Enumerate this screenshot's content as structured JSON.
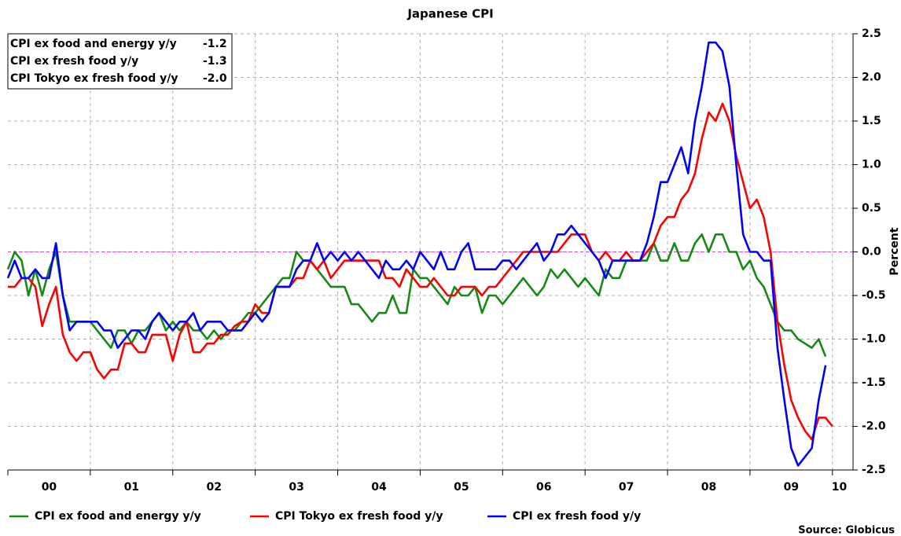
{
  "chart_data": {
    "type": "line",
    "title": "Japanese CPI",
    "y_label": "Percent",
    "source": "Source: Globicus",
    "ylim": [
      -2.5,
      2.5
    ],
    "yticks": [
      -2.5,
      {
        "value": -2,
        "label": "-2.0"
      },
      -1.5,
      {
        "value": -1,
        "label": "-1.0"
      },
      -0.5,
      {
        "value": 0,
        "label": "0.0"
      },
      0.5,
      {
        "value": 1,
        "label": "1.0"
      },
      1.5,
      {
        "value": 2,
        "label": "2.0"
      },
      2.5
    ],
    "grid": true,
    "zero_line_color": "#e040e0",
    "annotations": [
      {
        "text": "CPI ex food and energy y/y",
        "latest": "-1.2"
      },
      {
        "text": "CPI ex fresh food y/y",
        "latest": "-1.3"
      },
      {
        "text": "CPI Tokyo ex fresh food y/y",
        "latest": "-2.0"
      }
    ],
    "categories": [
      null,
      null,
      null,
      null,
      null,
      null,
      "00",
      null,
      null,
      null,
      null,
      null,
      null,
      null,
      null,
      null,
      null,
      null,
      "01",
      null,
      null,
      null,
      null,
      null,
      null,
      null,
      null,
      null,
      null,
      null,
      "02",
      null,
      null,
      null,
      null,
      null,
      null,
      null,
      null,
      null,
      null,
      null,
      "03",
      null,
      null,
      null,
      null,
      null,
      null,
      null,
      null,
      null,
      null,
      null,
      "04",
      null,
      null,
      null,
      null,
      null,
      null,
      null,
      null,
      null,
      null,
      null,
      "05",
      null,
      null,
      null,
      null,
      null,
      null,
      null,
      null,
      null,
      null,
      null,
      "06",
      null,
      null,
      null,
      null,
      null,
      null,
      null,
      null,
      null,
      null,
      null,
      "07",
      null,
      null,
      null,
      null,
      null,
      null,
      null,
      null,
      null,
      null,
      null,
      "08",
      null,
      null,
      null,
      null,
      null,
      null,
      null,
      null,
      null,
      null,
      null,
      "09",
      null,
      null,
      null,
      null,
      null,
      null,
      "10"
    ],
    "series": [
      {
        "name": "CPI ex food and energy y/y",
        "color": "#168a16",
        "values": [
          -0.2,
          0.0,
          -0.1,
          -0.5,
          -0.2,
          -0.5,
          -0.2,
          0.0,
          -0.5,
          -0.8,
          -0.8,
          -0.8,
          -0.8,
          -0.9,
          -1.0,
          -1.1,
          -0.9,
          -0.9,
          -1.05,
          -0.9,
          -0.9,
          -0.8,
          -0.7,
          -0.9,
          -0.8,
          -0.9,
          -0.8,
          -0.9,
          -0.9,
          -1.0,
          -0.9,
          -1.0,
          -0.9,
          -0.9,
          -0.8,
          -0.7,
          -0.7,
          -0.6,
          -0.5,
          -0.4,
          -0.3,
          -0.3,
          0.0,
          -0.1,
          -0.1,
          -0.2,
          -0.3,
          -0.4,
          -0.4,
          -0.4,
          -0.6,
          -0.6,
          -0.7,
          -0.8,
          -0.7,
          -0.7,
          -0.5,
          -0.7,
          -0.7,
          -0.2,
          -0.3,
          -0.3,
          -0.4,
          -0.5,
          -0.6,
          -0.4,
          -0.5,
          -0.5,
          -0.4,
          -0.7,
          -0.5,
          -0.5,
          -0.6,
          -0.5,
          -0.4,
          -0.3,
          -0.4,
          -0.5,
          -0.4,
          -0.2,
          -0.3,
          -0.2,
          -0.3,
          -0.4,
          -0.3,
          -0.4,
          -0.5,
          -0.2,
          -0.3,
          -0.3,
          -0.1,
          -0.1,
          -0.1,
          -0.1,
          0.1,
          -0.1,
          -0.1,
          0.1,
          -0.1,
          -0.1,
          0.1,
          0.2,
          0.0,
          0.2,
          0.2,
          0.0,
          0.0,
          -0.2,
          -0.1,
          -0.3,
          -0.4,
          -0.6,
          -0.8,
          -0.9,
          -0.9,
          -1.0,
          -1.05,
          -1.1,
          -1.0,
          -1.2,
          null,
          null
        ]
      },
      {
        "name": "CPI Tokyo ex fresh food y/y",
        "color": "#ff0000",
        "values": [
          -0.4,
          -0.4,
          -0.3,
          -0.3,
          -0.4,
          -0.85,
          -0.6,
          -0.4,
          -0.95,
          -1.15,
          -1.25,
          -1.15,
          -1.15,
          -1.35,
          -1.45,
          -1.35,
          -1.35,
          -1.05,
          -1.05,
          -1.15,
          -1.15,
          -0.95,
          -0.95,
          -0.95,
          -1.25,
          -0.95,
          -0.8,
          -1.15,
          -1.15,
          -1.05,
          -1.05,
          -0.95,
          -0.95,
          -0.85,
          -0.8,
          -0.8,
          -0.6,
          -0.7,
          -0.7,
          -0.4,
          -0.4,
          -0.4,
          -0.3,
          -0.3,
          -0.1,
          -0.2,
          -0.1,
          -0.3,
          -0.2,
          -0.1,
          -0.1,
          -0.1,
          -0.1,
          -0.1,
          -0.1,
          -0.3,
          -0.3,
          -0.4,
          -0.2,
          -0.3,
          -0.4,
          -0.4,
          -0.3,
          -0.4,
          -0.5,
          -0.5,
          -0.4,
          -0.4,
          -0.4,
          -0.5,
          -0.4,
          -0.4,
          -0.3,
          -0.2,
          -0.1,
          0.0,
          0.0,
          0.0,
          0.0,
          0.0,
          0.0,
          0.1,
          0.2,
          0.2,
          0.2,
          0.0,
          -0.1,
          0.0,
          -0.1,
          -0.1,
          0.0,
          -0.1,
          -0.1,
          0.0,
          0.1,
          0.3,
          0.4,
          0.4,
          0.6,
          0.7,
          0.9,
          1.3,
          1.6,
          1.5,
          1.7,
          1.5,
          1.1,
          0.8,
          0.5,
          0.6,
          0.4,
          0.0,
          -0.8,
          -1.3,
          -1.7,
          -1.9,
          -2.05,
          -2.15,
          -1.9,
          -1.9,
          -2.0,
          null
        ]
      },
      {
        "name": "CPI ex fresh food y/y",
        "color": "#0000ff",
        "values": [
          -0.3,
          -0.1,
          -0.3,
          -0.3,
          -0.2,
          -0.3,
          -0.3,
          0.1,
          -0.5,
          -0.9,
          -0.8,
          -0.8,
          -0.8,
          -0.8,
          -0.9,
          -0.9,
          -1.1,
          -1.0,
          -0.9,
          -0.9,
          -1.0,
          -0.8,
          -0.7,
          -0.8,
          -0.9,
          -0.8,
          -0.8,
          -0.7,
          -0.9,
          -0.8,
          -0.8,
          -0.8,
          -0.9,
          -0.9,
          -0.9,
          -0.8,
          -0.7,
          -0.8,
          -0.7,
          -0.4,
          -0.4,
          -0.4,
          -0.2,
          -0.1,
          -0.1,
          0.1,
          -0.1,
          0.0,
          -0.1,
          0.0,
          -0.1,
          0.0,
          -0.1,
          -0.2,
          -0.3,
          -0.1,
          -0.2,
          -0.2,
          -0.1,
          -0.2,
          0.0,
          -0.1,
          -0.2,
          0.0,
          -0.2,
          -0.2,
          0.0,
          0.1,
          -0.2,
          -0.2,
          -0.2,
          -0.2,
          -0.1,
          -0.1,
          -0.2,
          -0.1,
          0.0,
          0.1,
          -0.1,
          0.0,
          0.2,
          0.2,
          0.3,
          0.2,
          0.1,
          0.0,
          -0.1,
          -0.3,
          -0.1,
          -0.1,
          -0.1,
          -0.1,
          -0.1,
          0.1,
          0.4,
          0.8,
          0.8,
          1.0,
          1.2,
          0.9,
          1.5,
          1.9,
          2.4,
          2.4,
          2.3,
          1.9,
          1.0,
          0.2,
          0.0,
          0.0,
          -0.1,
          -0.1,
          -1.1,
          -1.7,
          -2.25,
          -2.45,
          -2.35,
          -2.25,
          -1.7,
          -1.3,
          null,
          null
        ]
      }
    ]
  }
}
